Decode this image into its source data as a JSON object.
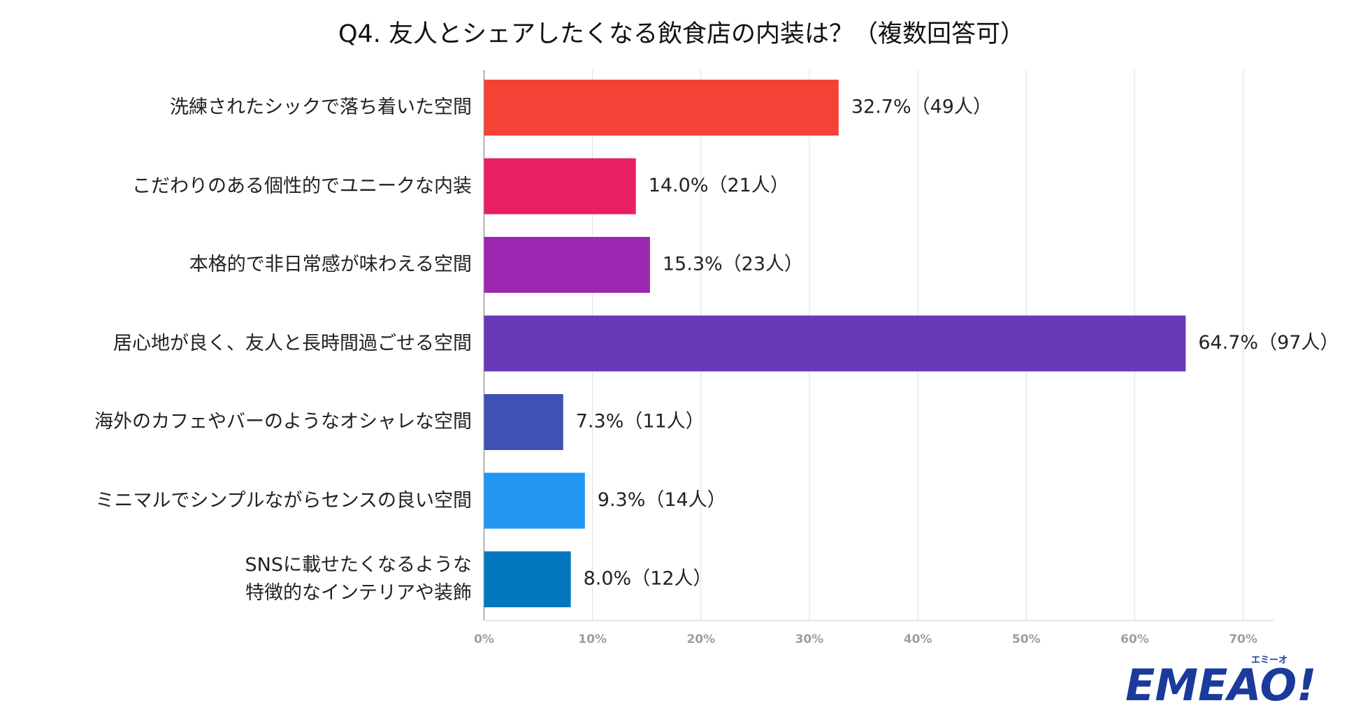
{
  "chart_data": {
    "type": "bar",
    "orientation": "horizontal",
    "title": "Q4. 友人とシェアしたくなる飲食店の内装は？（複数回答可）",
    "categories": [
      "洗練されたシックで落ち着いた空間",
      "こだわりのある個性的でユニークな内装",
      "本格的で非日常感が味わえる空間",
      "居心地が良く、友人と長時間過ごせる空間",
      "海外のカフェやバーのようなオシャレな空間",
      "ミニマルでシンプルながらセンスの良い空間",
      "SNSに載せたくなるような\n特徴的なインテリアや装飾"
    ],
    "values": [
      32.7,
      14.0,
      15.3,
      64.7,
      7.3,
      9.3,
      8.0
    ],
    "value_labels": [
      "32.7%（49人）",
      "14.0%（21人）",
      "15.3%（23人）",
      "64.7%（97人）",
      "7.3%（11人）",
      "9.3%（14人）",
      "8.0%（12人）"
    ],
    "colors": [
      "#f44336",
      "#e91e63",
      "#9c27b0",
      "#673ab7",
      "#3f51b5",
      "#2196f3",
      "#0277bd"
    ],
    "xlim": [
      0,
      72.8
    ],
    "xticks": [
      {
        "value": 0,
        "label": "0%"
      },
      {
        "value": 10,
        "label": "10%"
      },
      {
        "value": 20,
        "label": "20%"
      },
      {
        "value": 30,
        "label": "30%"
      },
      {
        "value": 40,
        "label": "40%"
      },
      {
        "value": 50,
        "label": "50%"
      },
      {
        "value": 60,
        "label": "60%"
      },
      {
        "value": 70,
        "label": "70%"
      }
    ],
    "grid": true
  },
  "logo": {
    "text": "EMEAO!",
    "kana": "エミーオ"
  }
}
